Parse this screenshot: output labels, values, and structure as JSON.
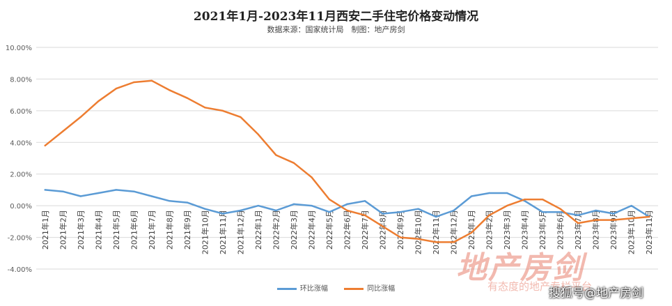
{
  "chart_data": {
    "type": "line",
    "title": "2021年1月-2023年11月西安二手住宅价格变动情况",
    "subtitle": "数据来源：国家统计局　制图：地产房剑",
    "categories": [
      "2021年1月",
      "2021年2月",
      "2021年3月",
      "2021年4月",
      "2021年5月",
      "2021年6月",
      "2021年7月",
      "2021年8月",
      "2021年9月",
      "2021年10月",
      "2021年11月",
      "2021年12月",
      "2022年1月",
      "2022年2月",
      "2022年3月",
      "2022年4月",
      "2022年5月",
      "2022年6月",
      "2022年7月",
      "2022年8月",
      "2022年9月",
      "2022年10月",
      "2022年11月",
      "2022年12月",
      "2023年1月",
      "2023年2月",
      "2023年3月",
      "2023年4月",
      "2023年5月",
      "2023年6月",
      "2023年7月",
      "2023年8月",
      "2023年9月",
      "2023年10月",
      "2023年11月"
    ],
    "series": [
      {
        "name": "环比涨幅",
        "color": "#5B9BD5",
        "values": [
          1.0,
          0.9,
          0.6,
          0.8,
          1.0,
          0.9,
          0.6,
          0.3,
          0.2,
          -0.2,
          -0.5,
          -0.3,
          0.0,
          -0.3,
          0.1,
          0.0,
          -0.4,
          0.1,
          0.3,
          -0.5,
          -0.4,
          -0.2,
          -0.7,
          -0.3,
          0.6,
          0.8,
          0.8,
          0.3,
          -0.4,
          -0.4,
          -0.6,
          -0.3,
          -0.5,
          0.0,
          -0.7
        ]
      },
      {
        "name": "同比涨幅",
        "color": "#ED7D31",
        "values": [
          3.8,
          4.7,
          5.6,
          6.6,
          7.4,
          7.8,
          7.9,
          7.3,
          6.8,
          6.2,
          6.0,
          5.6,
          4.5,
          3.2,
          2.7,
          1.8,
          0.4,
          -0.3,
          -0.6,
          -1.3,
          -2.0,
          -2.1,
          -2.3,
          -2.3,
          -1.7,
          -0.6,
          0.0,
          0.4,
          0.4,
          -0.2,
          -1.1,
          -0.9,
          -0.9,
          -0.8,
          -0.7
        ]
      }
    ],
    "yticks": [
      "10.00%",
      "8.00%",
      "6.00%",
      "4.00%",
      "2.00%",
      "0.00%",
      "-2.00%",
      "-4.00%"
    ],
    "ylim": [
      -4,
      10
    ],
    "grid": true,
    "legend_position": "bottom"
  },
  "watermark": {
    "logo_text": "地产房剑",
    "slogan": "有态度的地产专栏平台",
    "source": "搜狐号@地产房剑"
  }
}
